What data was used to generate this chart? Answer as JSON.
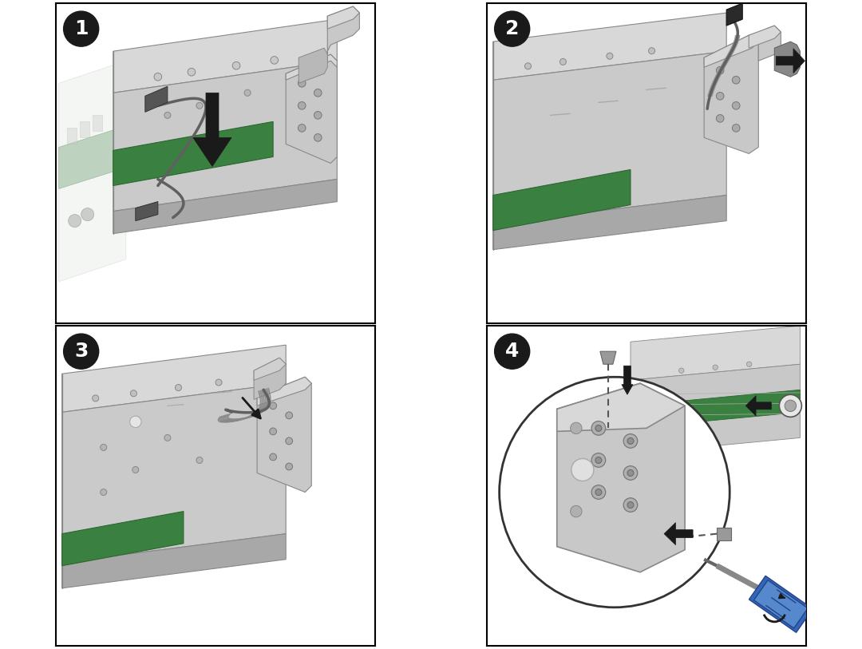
{
  "figure_width": 10.8,
  "figure_height": 8.13,
  "dpi": 100,
  "bg": "#ffffff",
  "border_color": "#000000",
  "border_lw": 1.5,
  "chassis_top": "#d8d8d8",
  "chassis_front": "#c0c0c0",
  "chassis_bottom": "#a8a8a8",
  "chassis_edge": "#888888",
  "green1": "#3a8040",
  "green2": "#2d6632",
  "cable": "#606060",
  "cable2": "#808080",
  "black": "#1a1a1a",
  "screw": "#909090",
  "screw_edge": "#606060",
  "screwdriver_blue": "#3366bb",
  "screwdriver_dark": "#224488",
  "shadow": "#aaaaaa",
  "white": "#ffffff",
  "light_gray": "#e8e8e8",
  "med_gray": "#b0b0b0",
  "dark_gray": "#707070"
}
